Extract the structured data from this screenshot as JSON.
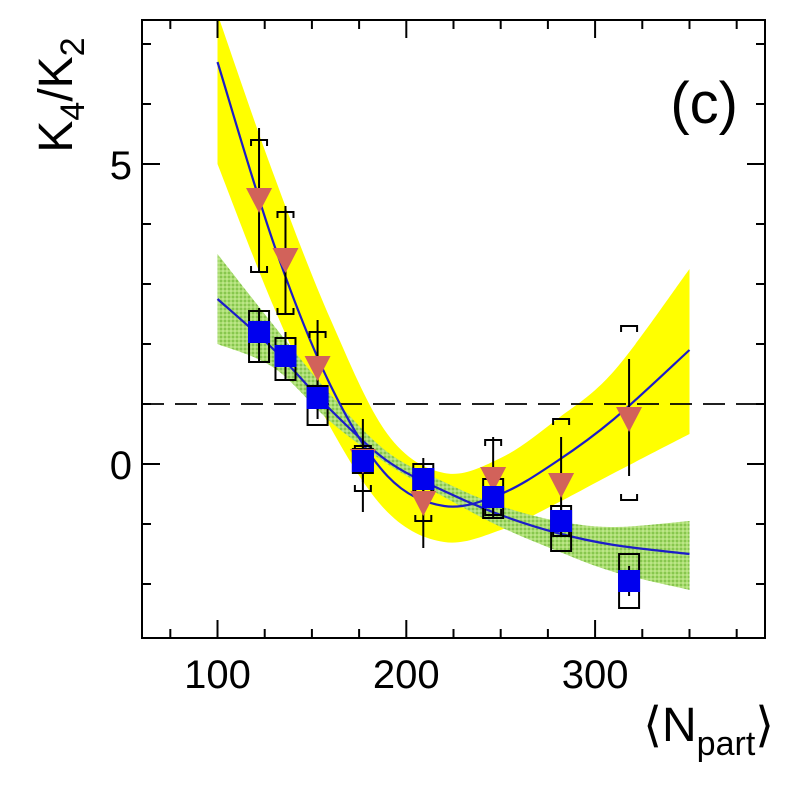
{
  "chart_data": {
    "type": "scatter",
    "panel_label": "(c)",
    "ylabel": {
      "main": "K",
      "sub1": "4",
      "slash": "/K",
      "sub2": "2"
    },
    "xlabel": {
      "open": "⟨N",
      "sub": "part",
      "close": "⟩"
    },
    "xlim": [
      60,
      390
    ],
    "ylim": [
      -2.9,
      7.4
    ],
    "x_ticks": [
      100,
      200,
      300
    ],
    "x_tick_labels": [
      "100",
      "200",
      "300"
    ],
    "y_ticks": [
      0,
      5
    ],
    "y_tick_labels": [
      "0",
      "5"
    ],
    "reference_line": {
      "y": 1,
      "style": "dashed"
    },
    "colors": {
      "triangle": "#d2625a",
      "square": "#0000ee",
      "fit": "#1c1cc8",
      "yellow_band": "#ffff00",
      "green_band": "#8fcf4a",
      "axes": "#000000"
    },
    "series": [
      {
        "name": "triangles",
        "marker": "triangle-down",
        "points": [
          {
            "x": 122,
            "y": 4.4,
            "stat_lo": 3.2,
            "stat_hi": 5.6,
            "sys_lo": 3.2,
            "sys_hi": 5.4
          },
          {
            "x": 136,
            "y": 3.4,
            "stat_lo": 2.5,
            "stat_hi": 4.3,
            "sys_lo": 2.5,
            "sys_hi": 4.2
          },
          {
            "x": 153,
            "y": 1.6,
            "stat_lo": 0.9,
            "stat_hi": 2.4,
            "sys_lo": 1.0,
            "sys_hi": 2.2
          },
          {
            "x": 177,
            "y": 0.05,
            "stat_lo": -0.8,
            "stat_hi": 0.75,
            "sys_lo": -0.45,
            "sys_hi": 0.3
          },
          {
            "x": 209,
            "y": -0.65,
            "stat_lo": -1.4,
            "stat_hi": 0.0,
            "sys_lo": -0.95,
            "sys_hi": -0.35
          },
          {
            "x": 246,
            "y": -0.25,
            "stat_lo": -0.9,
            "stat_hi": 0.45,
            "sys_lo": -0.85,
            "sys_hi": 0.4
          },
          {
            "x": 282,
            "y": -0.35,
            "stat_lo": -1.2,
            "stat_hi": 0.45,
            "sys_lo": -1.2,
            "sys_hi": 0.75
          },
          {
            "x": 318,
            "y": 0.75,
            "stat_lo": -0.2,
            "stat_hi": 1.75,
            "sys_lo": -0.6,
            "sys_hi": 2.3
          }
        ]
      },
      {
        "name": "squares",
        "marker": "square",
        "points": [
          {
            "x": 122,
            "y": 2.2,
            "stat_lo": 1.7,
            "stat_hi": 2.6,
            "sys_lo": 1.7,
            "sys_hi": 2.55
          },
          {
            "x": 136,
            "y": 1.8,
            "stat_lo": 1.4,
            "stat_hi": 2.2,
            "sys_lo": 1.4,
            "sys_hi": 2.1
          },
          {
            "x": 153,
            "y": 1.1,
            "stat_lo": 0.75,
            "stat_hi": 1.4,
            "sys_lo": 0.65,
            "sys_hi": 1.3
          },
          {
            "x": 177,
            "y": 0.05,
            "stat_lo": -0.3,
            "stat_hi": 0.35,
            "sys_lo": -0.15,
            "sys_hi": 0.25
          },
          {
            "x": 209,
            "y": -0.25,
            "stat_lo": -0.6,
            "stat_hi": 0.1,
            "sys_lo": -0.5,
            "sys_hi": 0.0
          },
          {
            "x": 246,
            "y": -0.55,
            "stat_lo": -0.85,
            "stat_hi": -0.25,
            "sys_lo": -0.9,
            "sys_hi": -0.25
          },
          {
            "x": 282,
            "y": -0.95,
            "stat_lo": -1.2,
            "stat_hi": -0.7,
            "sys_lo": -1.45,
            "sys_hi": -0.7
          },
          {
            "x": 318,
            "y": -1.95,
            "stat_lo": -2.2,
            "stat_hi": -1.7,
            "sys_lo": -2.4,
            "sys_hi": -1.5
          }
        ]
      }
    ],
    "fits": [
      {
        "name": "triangle-fit",
        "x": [
          100,
          130,
          160,
          190,
          220,
          250,
          280,
          310,
          350
        ],
        "y": [
          6.7,
          3.65,
          1.3,
          -0.2,
          -0.7,
          -0.5,
          0.05,
          0.75,
          1.9
        ]
      },
      {
        "name": "square-fit",
        "x": [
          100,
          130,
          160,
          190,
          220,
          250,
          280,
          310,
          350
        ],
        "y": [
          2.75,
          1.9,
          0.9,
          0.05,
          -0.45,
          -0.85,
          -1.15,
          -1.35,
          -1.5
        ]
      }
    ],
    "bands": [
      {
        "name": "yellow-band",
        "x": [
          100,
          130,
          160,
          190,
          220,
          250,
          280,
          310,
          350
        ],
        "lo": [
          5.0,
          2.6,
          0.6,
          -0.8,
          -1.3,
          -1.1,
          -0.65,
          -0.15,
          0.5
        ],
        "hi": [
          7.5,
          4.8,
          2.4,
          0.5,
          -0.15,
          0.1,
          0.75,
          1.55,
          3.25
        ]
      },
      {
        "name": "green-band",
        "x": [
          100,
          130,
          160,
          190,
          220,
          250,
          280,
          310,
          350
        ],
        "lo": [
          2.0,
          1.6,
          0.7,
          0.0,
          -0.55,
          -1.05,
          -1.45,
          -1.8,
          -2.1
        ],
        "hi": [
          3.5,
          2.3,
          1.15,
          0.2,
          -0.3,
          -0.7,
          -0.95,
          -1.05,
          -0.95
        ]
      }
    ]
  }
}
